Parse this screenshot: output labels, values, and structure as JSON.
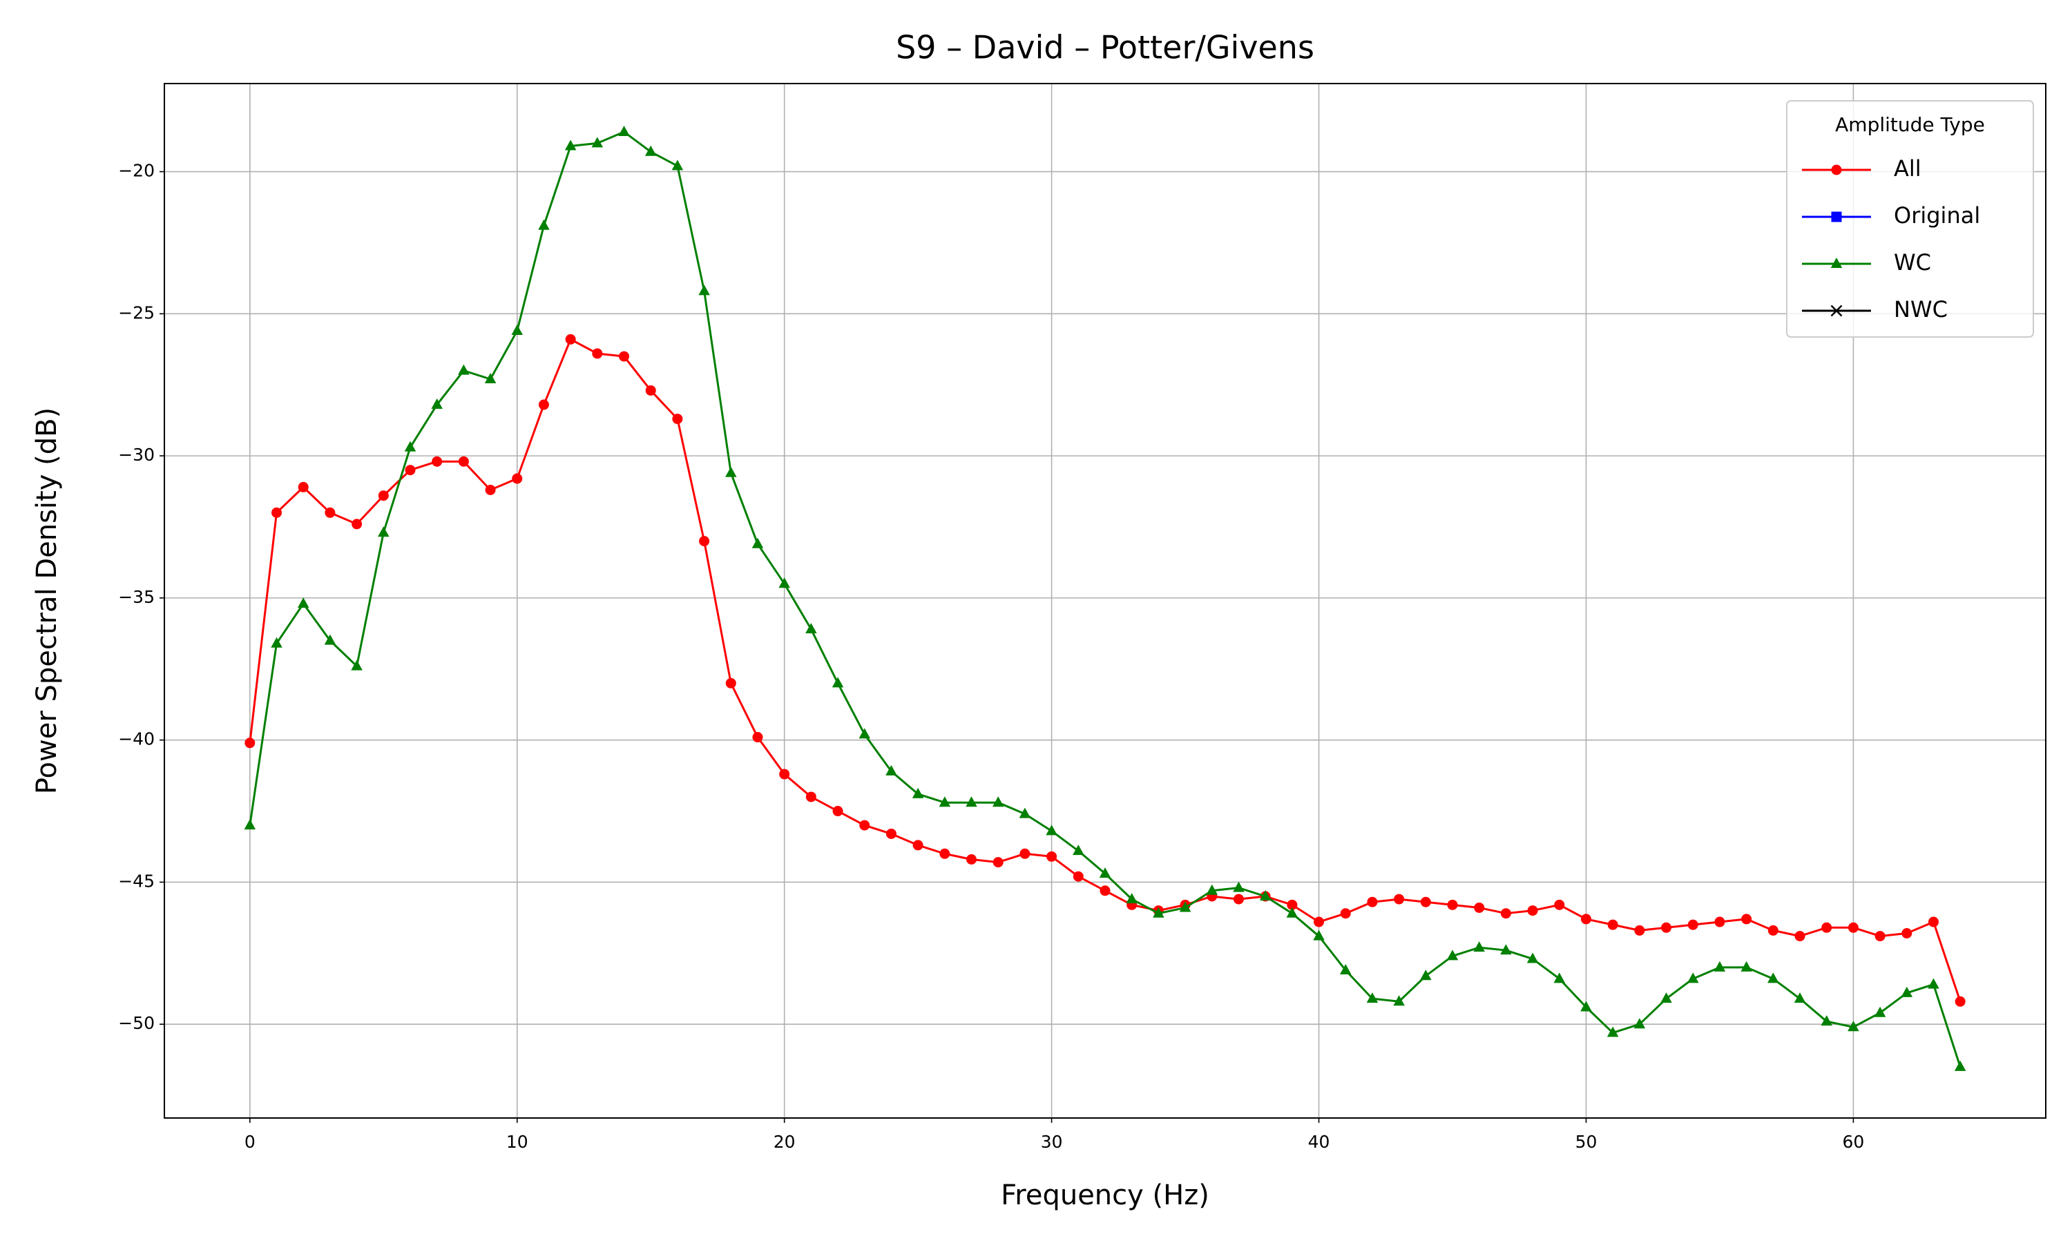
{
  "chart_data": {
    "type": "line",
    "title": "S9 – David – Potter/Givens",
    "x_label": "Frequency (Hz)",
    "y_label": "Power Spectral Density (dB)",
    "legend_title": "Amplitude Type",
    "legend": "upper right",
    "grid": true,
    "x": [
      0,
      1,
      2,
      3,
      4,
      5,
      6,
      7,
      8,
      9,
      10,
      11,
      12,
      13,
      14,
      15,
      16,
      17,
      18,
      19,
      20,
      21,
      22,
      23,
      24,
      25,
      26,
      27,
      28,
      29,
      30,
      31,
      32,
      33,
      34,
      35,
      36,
      37,
      38,
      39,
      40,
      41,
      42,
      43,
      44,
      45,
      46,
      47,
      48,
      49,
      50,
      51,
      52,
      53,
      54,
      55,
      56,
      57,
      58,
      59,
      60,
      61,
      62,
      63,
      64
    ],
    "series": [
      {
        "name": "All",
        "color": "#ff0000",
        "marker": "circle",
        "values": [
          -40.1,
          -32.0,
          -31.1,
          -32.0,
          -32.4,
          -31.4,
          -30.5,
          -30.2,
          -30.2,
          -31.2,
          -30.8,
          -28.2,
          -25.9,
          -26.4,
          -26.5,
          -27.7,
          -28.7,
          -33.0,
          -38.0,
          -39.9,
          -41.2,
          -42.0,
          -42.5,
          -43.0,
          -43.3,
          -43.7,
          -44.0,
          -44.2,
          -44.3,
          -44.0,
          -44.1,
          -44.8,
          -45.3,
          -45.8,
          -46.0,
          -45.8,
          -45.5,
          -45.6,
          -45.5,
          -45.8,
          -46.4,
          -46.1,
          -45.7,
          -45.6,
          -45.7,
          -45.8,
          -45.9,
          -46.1,
          -46.0,
          -45.8,
          -46.3,
          -46.5,
          -46.7,
          -46.6,
          -46.5,
          -46.4,
          -46.3,
          -46.7,
          -46.9,
          -46.6,
          -46.6,
          -46.9,
          -46.8,
          -46.4,
          -49.2
        ]
      },
      {
        "name": "Original",
        "color": "#0000ff",
        "marker": "square",
        "values": [
          null,
          null,
          null,
          null,
          null,
          null,
          null,
          null,
          null,
          null,
          null,
          null,
          null,
          null,
          null,
          null,
          null,
          null,
          null,
          null,
          null,
          null,
          null,
          null,
          null,
          null,
          null,
          null,
          null,
          null,
          null,
          null,
          null,
          null,
          null,
          null,
          null,
          null,
          null,
          null,
          null,
          null,
          null,
          null,
          null,
          null,
          null,
          null,
          null,
          null,
          null,
          null,
          null,
          null,
          null,
          null,
          null,
          null,
          null,
          null,
          null,
          null,
          null,
          null,
          null
        ]
      },
      {
        "name": "WC",
        "color": "#008000",
        "marker": "triangle",
        "values": [
          -43.0,
          -36.6,
          -35.2,
          -36.5,
          -37.4,
          -32.7,
          -29.7,
          -28.2,
          -27.0,
          -27.3,
          -25.6,
          -21.9,
          -19.1,
          -19.0,
          -18.6,
          -19.3,
          -19.8,
          -24.2,
          -30.6,
          -33.1,
          -34.5,
          -36.1,
          -38.0,
          -39.8,
          -41.1,
          -41.9,
          -42.2,
          -42.2,
          -42.2,
          -42.6,
          -43.2,
          -43.9,
          -44.7,
          -45.6,
          -46.1,
          -45.9,
          -45.3,
          -45.2,
          -45.5,
          -46.1,
          -46.9,
          -48.1,
          -49.1,
          -49.2,
          -48.3,
          -47.6,
          -47.3,
          -47.4,
          -47.7,
          -48.4,
          -49.4,
          -50.3,
          -50.0,
          -49.1,
          -48.4,
          -48.0,
          -48.0,
          -48.4,
          -49.1,
          -49.9,
          -50.1,
          -49.6,
          -48.9,
          -48.6,
          -51.5
        ]
      },
      {
        "name": "NWC",
        "color": "#000000",
        "marker": "x",
        "values": [
          null,
          null,
          null,
          null,
          null,
          null,
          null,
          null,
          null,
          null,
          null,
          null,
          null,
          null,
          null,
          null,
          null,
          null,
          null,
          null,
          null,
          null,
          null,
          null,
          null,
          null,
          null,
          null,
          null,
          null,
          null,
          null,
          null,
          null,
          null,
          null,
          null,
          null,
          null,
          null,
          null,
          null,
          null,
          null,
          null,
          null,
          null,
          null,
          null,
          null,
          null,
          null,
          null,
          null,
          null,
          null,
          null,
          null,
          null,
          null,
          null,
          null,
          null,
          null,
          null
        ]
      }
    ],
    "xlim": [
      -3.2,
      67.2
    ],
    "xticks": [
      0,
      10,
      20,
      30,
      40,
      50,
      60
    ],
    "ylim": [
      -53.3,
      -16.9
    ],
    "yticks": [
      {
        "value": -50,
        "label": "−50"
      },
      {
        "value": -45,
        "label": "−45"
      },
      {
        "value": -40,
        "label": "−40"
      },
      {
        "value": -35,
        "label": "−35"
      },
      {
        "value": -30,
        "label": "−30"
      },
      {
        "value": -25,
        "label": "−25"
      },
      {
        "value": -20,
        "label": "−20"
      }
    ]
  }
}
